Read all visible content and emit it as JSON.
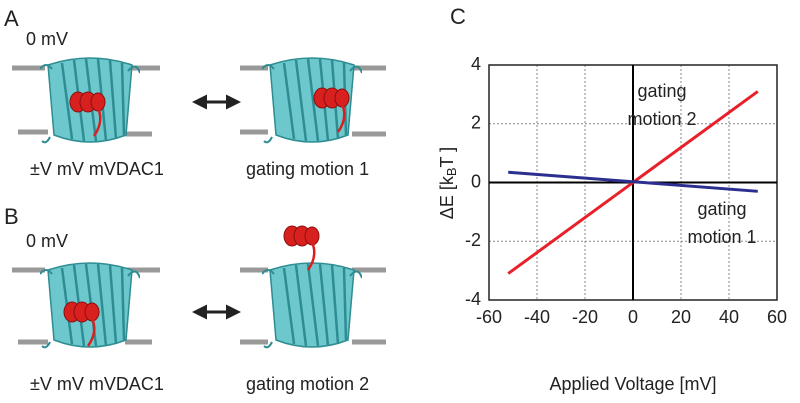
{
  "panels": {
    "A": {
      "label": "A",
      "voltage": "0 mV",
      "left_caption": "±V mV mVDAC1",
      "right_caption": "gating motion 1"
    },
    "B": {
      "label": "B",
      "voltage": "0 mV",
      "left_caption": "±V mV mVDAC1",
      "right_caption": "gating motion 2"
    }
  },
  "chart_data": {
    "type": "line",
    "panel_label": "C",
    "xlabel": "Applied Voltage [mV]",
    "ylabel_parts": [
      "ΔE [k",
      "B",
      "T ]"
    ],
    "annotations": [
      {
        "lines": [
          "gating",
          "motion 2"
        ]
      },
      {
        "lines": [
          "gating",
          "motion 1"
        ]
      }
    ],
    "x": [
      -52,
      52
    ],
    "series": [
      {
        "color": "#e8202a",
        "values": [
          -3.1,
          3.1
        ]
      },
      {
        "color": "#2b2f8f",
        "values": [
          0.35,
          -0.3
        ]
      }
    ],
    "xlim": [
      -60,
      60
    ],
    "ylim": [
      -4,
      4
    ],
    "xticks": [
      -60,
      -40,
      -20,
      0,
      20,
      40,
      60
    ],
    "yticks": [
      -4,
      -2,
      0,
      2,
      4
    ],
    "grid": true
  }
}
